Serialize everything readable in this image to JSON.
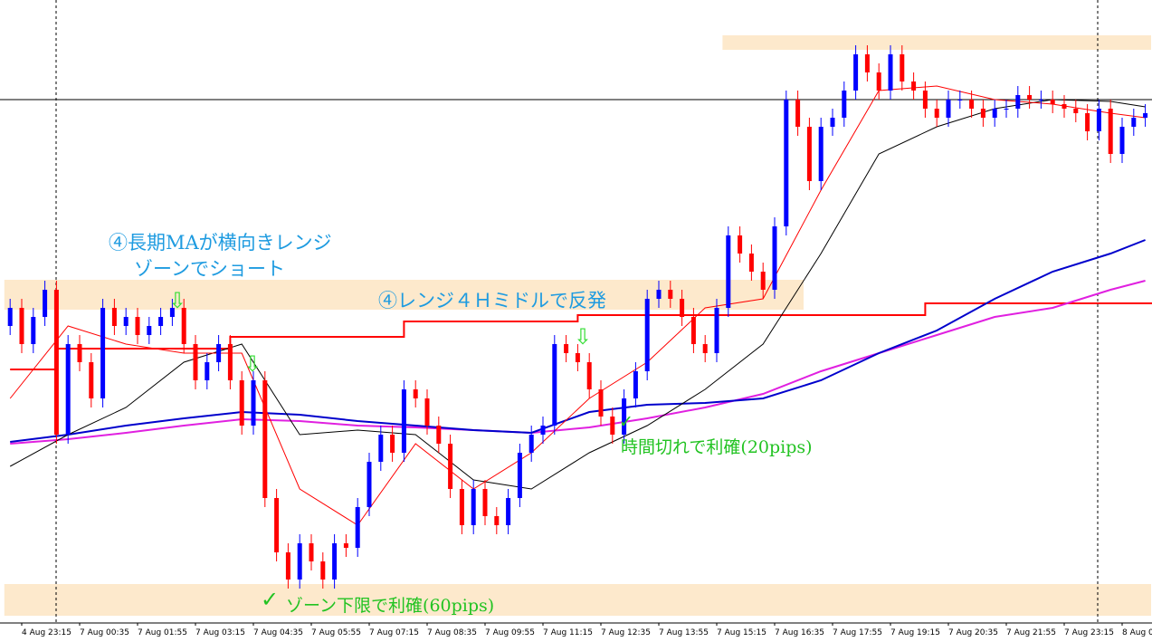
{
  "chart_data": {
    "type": "candlestick",
    "ylim": [
      12,
      700
    ],
    "categories": [
      null,
      "4 Aug 23:15",
      null,
      null,
      null,
      null,
      "7 Aug 00:35",
      null,
      null,
      null,
      null,
      "7 Aug 01:55",
      null,
      null,
      null,
      null,
      "7 Aug 03:15",
      null,
      null,
      null,
      null,
      "7 Aug 04:35",
      null,
      null,
      null,
      null,
      "7 Aug 05:55",
      null,
      null,
      null,
      null,
      "7 Aug 07:15",
      null,
      null,
      null,
      null,
      "7 Aug 08:35",
      null,
      null,
      null,
      null,
      "7 Aug 09:55",
      null,
      null,
      null,
      null,
      "7 Aug 11:15",
      null,
      null,
      null,
      null,
      "7 Aug 12:35",
      null,
      null,
      null,
      null,
      "7 Aug 13:55",
      null,
      null,
      null,
      null,
      "7 Aug 15:15",
      null,
      null,
      null,
      null,
      "7 Aug 16:35",
      null,
      null,
      null,
      null,
      "7 Aug 17:55",
      null,
      null,
      null,
      null,
      "7 Aug 19:15",
      null,
      null,
      null,
      null,
      "7 Aug 20:35",
      null,
      null,
      null,
      null,
      "7 Aug 21:55",
      null,
      null,
      null,
      null,
      "7 Aug 23:15",
      null,
      null,
      null,
      null,
      "8 Aug 0",
      null,
      null
    ],
    "open": [
      340,
      360,
      320,
      350,
      380,
      220,
      320,
      300,
      260,
      360,
      340,
      350,
      330,
      340,
      350,
      360,
      320,
      280,
      300,
      320,
      280,
      230,
      280,
      150,
      90,
      60,
      100,
      80,
      60,
      100,
      95,
      140,
      190,
      220,
      200,
      270,
      260,
      230,
      210,
      160,
      120,
      160,
      130,
      120,
      150,
      200,
      220,
      230,
      320,
      310,
      300,
      270,
      240,
      220,
      260,
      290,
      370,
      380,
      370,
      350,
      320,
      310,
      360,
      440,
      420,
      400,
      380,
      450,
      590,
      560,
      500,
      560,
      570,
      600,
      640,
      620,
      600,
      640,
      610,
      600,
      580,
      570,
      590,
      590,
      580,
      570,
      580,
      580,
      595,
      590,
      590,
      585,
      580,
      575,
      555,
      580,
      530,
      560,
      570
    ],
    "high": [
      370,
      370,
      360,
      390,
      390,
      330,
      330,
      310,
      370,
      370,
      360,
      360,
      350,
      360,
      370,
      370,
      330,
      310,
      330,
      330,
      290,
      290,
      290,
      160,
      100,
      110,
      110,
      90,
      110,
      110,
      150,
      200,
      230,
      230,
      280,
      280,
      270,
      240,
      220,
      170,
      170,
      170,
      140,
      160,
      210,
      230,
      240,
      330,
      330,
      320,
      310,
      280,
      250,
      270,
      300,
      380,
      390,
      390,
      380,
      360,
      330,
      370,
      450,
      450,
      430,
      410,
      460,
      600,
      600,
      570,
      570,
      580,
      610,
      650,
      650,
      630,
      650,
      650,
      620,
      610,
      590,
      600,
      600,
      600,
      590,
      590,
      590,
      605,
      605,
      600,
      600,
      595,
      590,
      585,
      590,
      590,
      570,
      580,
      585
    ],
    "low": [
      330,
      310,
      310,
      340,
      210,
      210,
      290,
      250,
      250,
      330,
      330,
      320,
      320,
      330,
      340,
      310,
      270,
      270,
      290,
      270,
      220,
      220,
      140,
      80,
      50,
      50,
      70,
      50,
      50,
      85,
      85,
      130,
      180,
      190,
      190,
      250,
      220,
      200,
      150,
      110,
      110,
      120,
      110,
      110,
      140,
      190,
      210,
      220,
      300,
      290,
      260,
      230,
      210,
      210,
      250,
      280,
      360,
      360,
      340,
      310,
      300,
      300,
      350,
      410,
      390,
      370,
      370,
      440,
      550,
      490,
      490,
      550,
      560,
      590,
      610,
      590,
      590,
      600,
      590,
      570,
      560,
      560,
      580,
      570,
      560,
      560,
      570,
      570,
      580,
      580,
      575,
      570,
      565,
      545,
      545,
      520,
      520,
      550,
      560
    ],
    "close": [
      360,
      320,
      350,
      380,
      220,
      320,
      300,
      260,
      360,
      340,
      350,
      330,
      340,
      350,
      360,
      320,
      280,
      300,
      320,
      280,
      230,
      280,
      150,
      90,
      60,
      100,
      80,
      60,
      100,
      95,
      140,
      190,
      220,
      200,
      270,
      260,
      230,
      210,
      160,
      120,
      160,
      130,
      120,
      150,
      200,
      220,
      230,
      320,
      310,
      300,
      270,
      240,
      220,
      260,
      290,
      370,
      380,
      370,
      350,
      320,
      310,
      360,
      440,
      420,
      400,
      380,
      450,
      590,
      560,
      500,
      560,
      570,
      600,
      640,
      620,
      600,
      640,
      610,
      600,
      580,
      570,
      590,
      590,
      580,
      570,
      580,
      580,
      595,
      590,
      590,
      585,
      580,
      575,
      555,
      580,
      530,
      560,
      570,
      575
    ],
    "up_color": "#0000ff",
    "down_color": "#ff0000",
    "lines": {
      "x": [
        0,
        5,
        10,
        15,
        20,
        25,
        30,
        35,
        40,
        45,
        50,
        55,
        60,
        65,
        70,
        75,
        80,
        85,
        90,
        95,
        98
      ],
      "series": [
        {
          "color": "#e020e0",
          "values": [
            210,
            215,
            222,
            230,
            237,
            235,
            230,
            228,
            225,
            222,
            228,
            238,
            250,
            265,
            290,
            310,
            330,
            350,
            360,
            380,
            390
          ]
        },
        {
          "color": "#0000cc",
          "values": [
            212,
            220,
            230,
            238,
            245,
            242,
            235,
            230,
            225,
            222,
            245,
            253,
            255,
            260,
            280,
            310,
            335,
            370,
            400,
            420,
            435
          ]
        },
        {
          "color": "#000000",
          "values": [
            185,
            220,
            250,
            300,
            320,
            220,
            225,
            220,
            170,
            160,
            200,
            230,
            270,
            320,
            420,
            530,
            560,
            580,
            590,
            588,
            582
          ]
        },
        {
          "color": "#ff0000",
          "values": [
            260,
            340,
            320,
            310,
            310,
            160,
            120,
            210,
            160,
            200,
            260,
            300,
            360,
            370,
            490,
            600,
            605,
            590,
            585,
            575,
            570
          ]
        }
      ]
    },
    "step_line": {
      "color": "#ff0000",
      "x": [
        0,
        4,
        19,
        34,
        49,
        79
      ],
      "values": [
        292,
        315,
        328,
        345,
        352,
        365
      ]
    },
    "price_line": 590,
    "zones": [
      {
        "from": 0,
        "to": 68,
        "low": 358,
        "high": 391
      },
      {
        "from": 62,
        "to": 98,
        "low": 645,
        "high": 661
      },
      {
        "from": 0,
        "to": 98,
        "low": 20,
        "high": 55
      }
    ]
  },
  "annotations": {
    "short_line1": "④長期MAが横向きレンジ",
    "short_line2": "ゾーンでショート",
    "rebound": "④レンジ４Ｈミドルで反発",
    "take_profit_time": "時間切れで利確(20pips)",
    "take_profit_zone": "ゾーン下限で利確(60pips)"
  }
}
